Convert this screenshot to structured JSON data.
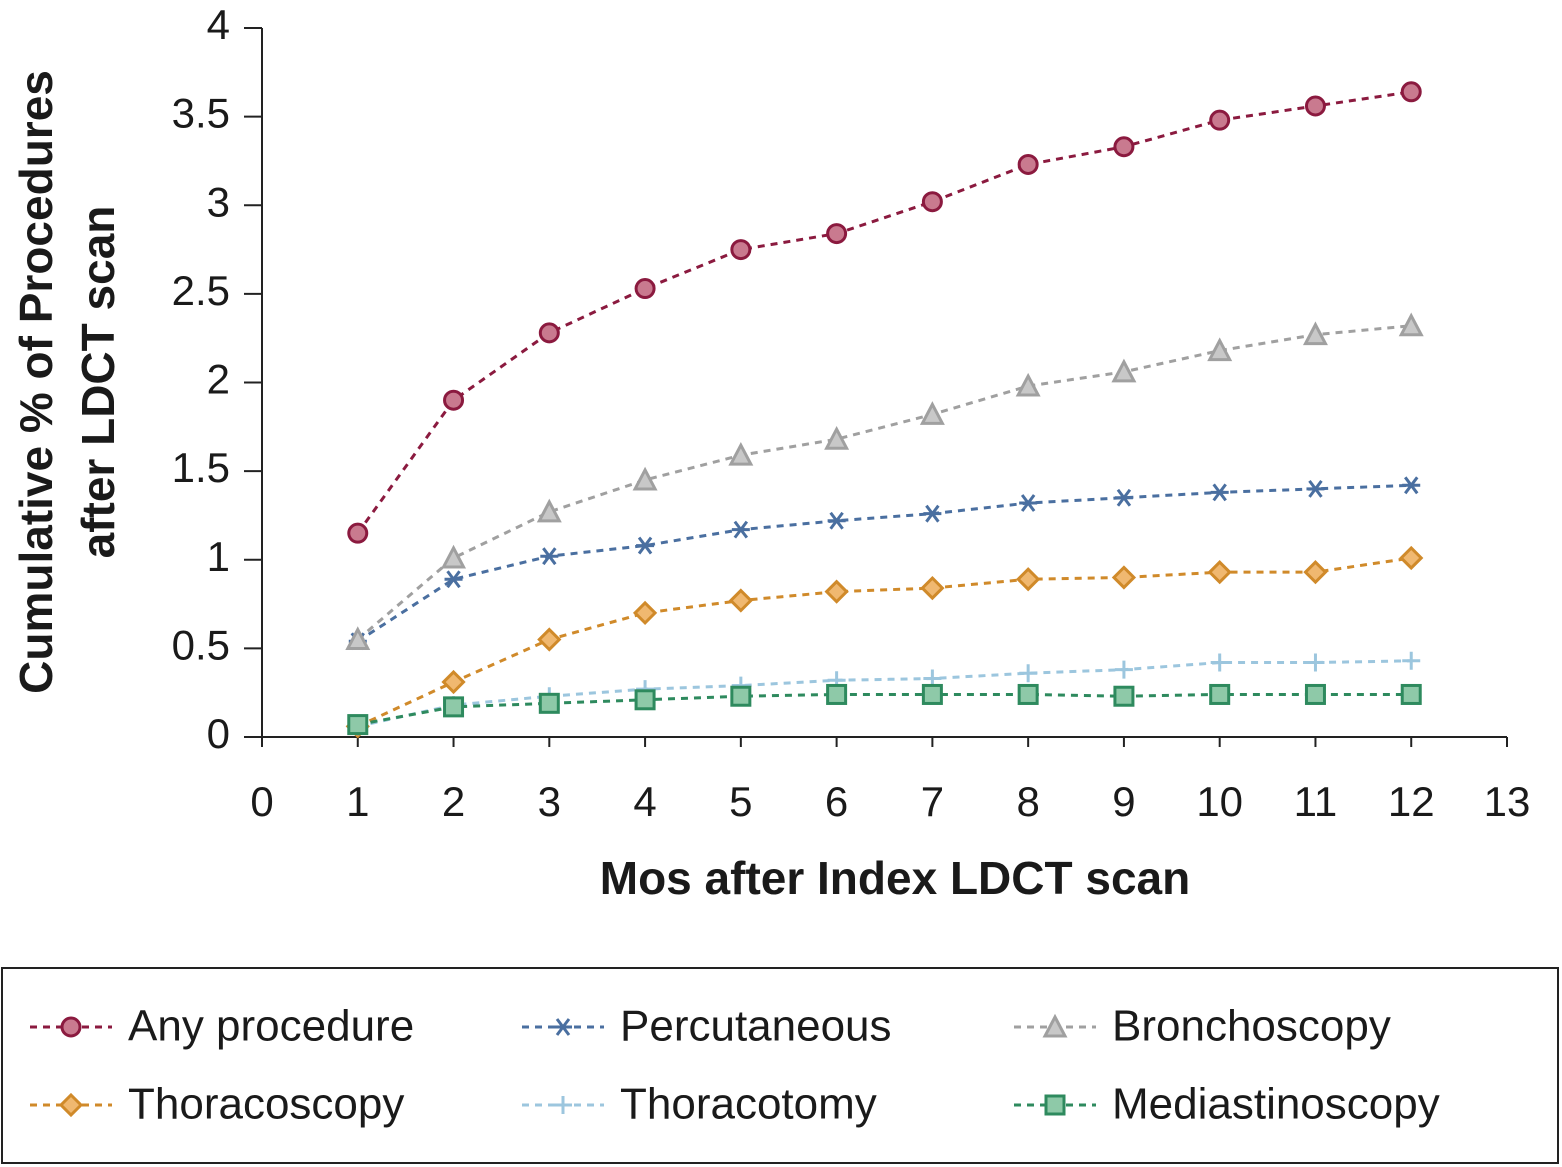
{
  "chart_data": {
    "type": "line",
    "x_label": "Mos after Index LDCT scan",
    "y_label": [
      "Cumulative % of Procedures",
      "after LDCT scan"
    ],
    "x": [
      1,
      2,
      3,
      4,
      5,
      6,
      7,
      8,
      9,
      10,
      11,
      12
    ],
    "xlim": [
      0,
      13
    ],
    "xticks": [
      0,
      1,
      2,
      3,
      4,
      5,
      6,
      7,
      8,
      9,
      10,
      11,
      12,
      13
    ],
    "ylim": [
      0,
      4
    ],
    "yticks": [
      0,
      0.5,
      1,
      1.5,
      2,
      2.5,
      3,
      3.5,
      4
    ],
    "series": [
      {
        "name": "Any procedure",
        "color": "#8b1a3f",
        "fill": "#c97a8f",
        "marker": "circle",
        "values": [
          1.15,
          1.9,
          2.28,
          2.53,
          2.75,
          2.84,
          3.02,
          3.23,
          3.33,
          3.48,
          3.56,
          3.64
        ]
      },
      {
        "name": "Percutaneous",
        "color": "#4a6fa0",
        "fill": "#4a6fa0",
        "marker": "star",
        "values": [
          0.54,
          0.89,
          1.02,
          1.08,
          1.17,
          1.22,
          1.26,
          1.32,
          1.35,
          1.38,
          1.4,
          1.42
        ]
      },
      {
        "name": "Bronchoscopy",
        "color": "#a0a0a0",
        "fill": "#c8c8c8",
        "marker": "triangle",
        "values": [
          0.55,
          1.01,
          1.27,
          1.45,
          1.59,
          1.68,
          1.82,
          1.98,
          2.06,
          2.18,
          2.27,
          2.32
        ]
      },
      {
        "name": "Thoracoscopy",
        "color": "#d08a2a",
        "fill": "#f0b870",
        "marker": "diamond",
        "values": [
          0.06,
          0.31,
          0.55,
          0.7,
          0.77,
          0.82,
          0.84,
          0.89,
          0.9,
          0.93,
          0.93,
          1.01
        ]
      },
      {
        "name": "Thoracotomy",
        "color": "#9cc6de",
        "fill": "#9cc6de",
        "marker": "plus",
        "values": [
          0.06,
          0.18,
          0.23,
          0.27,
          0.29,
          0.32,
          0.33,
          0.36,
          0.38,
          0.42,
          0.42,
          0.43
        ]
      },
      {
        "name": "Mediastinoscopy",
        "color": "#2e8a5e",
        "fill": "#8ec9a8",
        "marker": "square",
        "values": [
          0.07,
          0.17,
          0.19,
          0.21,
          0.23,
          0.24,
          0.24,
          0.24,
          0.23,
          0.24,
          0.24,
          0.24
        ]
      }
    ]
  }
}
